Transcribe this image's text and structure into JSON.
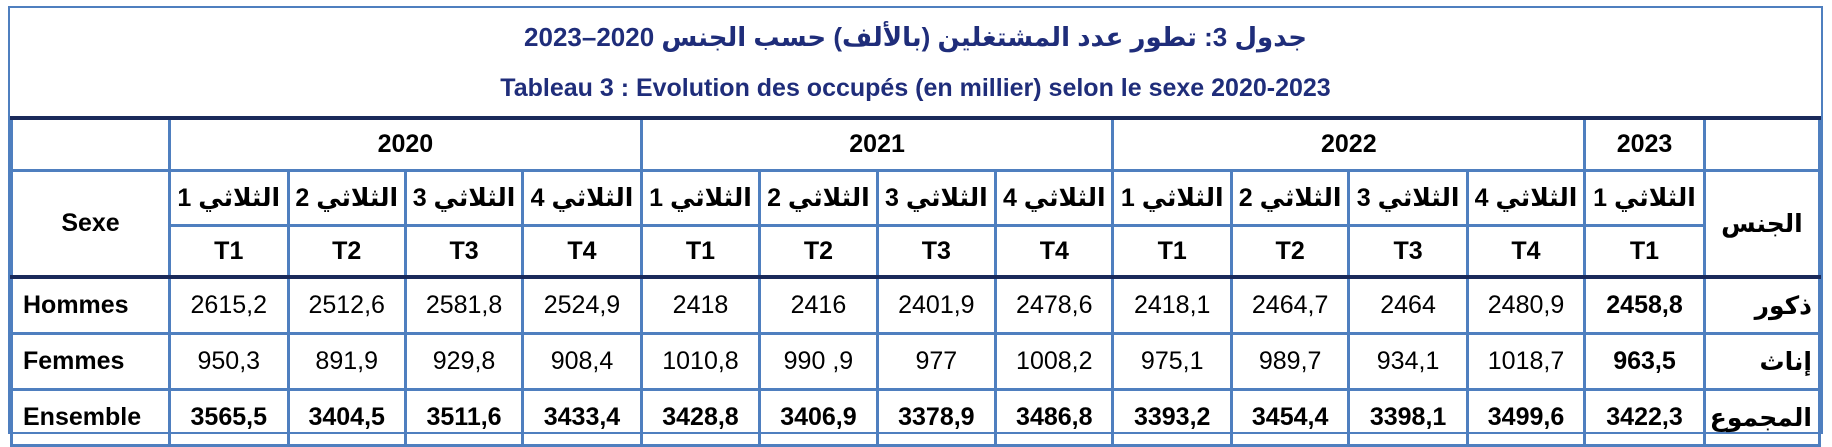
{
  "title": {
    "arabic": "جدول 3: تطور عدد المشتغلين (بالألف) حسب الجنس 2020–2023",
    "french": "Tableau 3 : Evolution des occupés (en millier) selon le sexe 2020-2023"
  },
  "header": {
    "years": [
      "2020",
      "2021",
      "2022",
      "2023"
    ],
    "sexe_fr": "Sexe",
    "sexe_ar": "الجنس",
    "trimestres_ar": [
      "الثلاثي 1",
      "الثلاثي 2",
      "الثلاثي 3",
      "الثلاثي 4",
      "الثلاثي 1",
      "الثلاثي 2",
      "الثلاثي 3",
      "الثلاثي 4",
      "الثلاثي 1",
      "الثلاثي 2",
      "الثلاثي 3",
      "الثلاثي 4",
      "الثلاثي 1"
    ],
    "trimestres_t": [
      "T1",
      "T2",
      "T3",
      "T4",
      "T1",
      "T2",
      "T3",
      "T4",
      "T1",
      "T2",
      "T3",
      "T4",
      "T1"
    ]
  },
  "rows": [
    {
      "label_fr": "Hommes",
      "label_ar": "ذكور",
      "values": [
        "2615,2",
        "2512,6",
        "2581,8",
        "2524,9",
        "2418",
        "2416",
        "2401,9",
        "2478,6",
        "2418,1",
        "2464,7",
        "2464",
        "2480,9",
        "2458,8"
      ]
    },
    {
      "label_fr": "Femmes",
      "label_ar": "إناث",
      "values": [
        "950,3",
        "891,9",
        "929,8",
        "908,4",
        "1010,8",
        "990 ,9",
        "977",
        "1008,2",
        "975,1",
        "989,7",
        "934,1",
        "1018,7",
        "963,5"
      ]
    },
    {
      "label_fr": "Ensemble",
      "label_ar": "المجموع",
      "values": [
        "3565,5",
        "3404,5",
        "3511,6",
        "3433,4",
        "3428,8",
        "3406,9",
        "3378,9",
        "3486,8",
        "3393,2",
        "3454,4",
        "3398,1",
        "3499,6",
        "3422,3"
      ]
    }
  ],
  "colors": {
    "border": "#4f7fbf",
    "title": "#1f2d7a"
  }
}
